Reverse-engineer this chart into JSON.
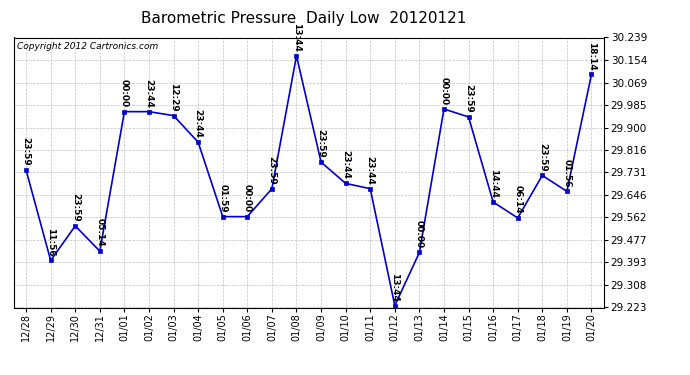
{
  "title": "Barometric Pressure  Daily Low  20120121",
  "copyright": "Copyright 2012 Cartronics.com",
  "x_labels": [
    "12/28",
    "12/29",
    "12/30",
    "12/31",
    "01/01",
    "01/02",
    "01/03",
    "01/04",
    "01/05",
    "01/06",
    "01/07",
    "01/08",
    "01/09",
    "01/10",
    "01/11",
    "01/12",
    "01/13",
    "01/14",
    "01/15",
    "01/16",
    "01/17",
    "01/18",
    "01/19",
    "01/20"
  ],
  "y_values": [
    29.74,
    29.4,
    29.53,
    29.435,
    29.96,
    29.96,
    29.945,
    29.845,
    29.565,
    29.565,
    29.67,
    30.17,
    29.77,
    29.69,
    29.67,
    29.23,
    29.43,
    29.97,
    29.94,
    29.62,
    29.56,
    29.72,
    29.66,
    30.1
  ],
  "point_labels": [
    "23:59",
    "11:56",
    "23:59",
    "05:14",
    "00:00",
    "23:44",
    "12:29",
    "23:44",
    "01:59",
    "00:00",
    "23:59",
    "13:44",
    "23:59",
    "23:44",
    "23:44",
    "13:44",
    "00:00",
    "00:00",
    "23:59",
    "14:44",
    "06:14",
    "23:59",
    "01:56",
    "18:14"
  ],
  "y_ticks": [
    29.223,
    29.308,
    29.393,
    29.477,
    29.562,
    29.646,
    29.731,
    29.816,
    29.9,
    29.985,
    30.069,
    30.154,
    30.239
  ],
  "ylim_min": 29.223,
  "ylim_max": 30.239,
  "line_color": "#0000cc",
  "marker_color": "#0000cc",
  "grid_color": "#b0b0b0",
  "bg_color": "#ffffff",
  "title_fontsize": 11,
  "copyright_fontsize": 6.5,
  "label_fontsize": 6.5,
  "tick_fontsize": 7.5,
  "xtick_fontsize": 7.0
}
